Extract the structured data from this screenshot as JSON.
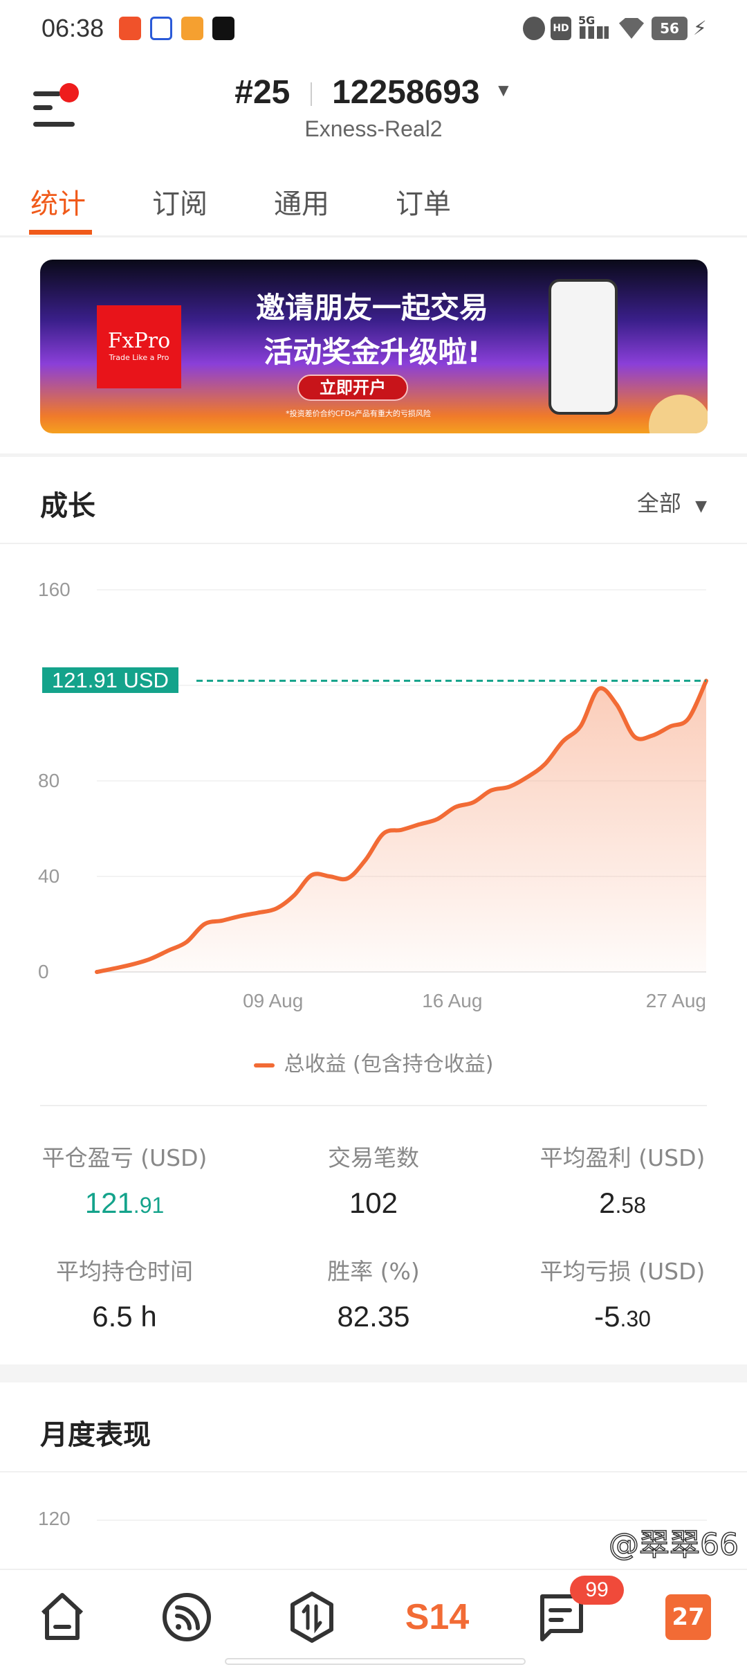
{
  "status_bar": {
    "time": "06:38",
    "battery": "56",
    "network": "5G",
    "hd": "HD"
  },
  "header": {
    "account_number": "#25",
    "account_id": "12258693",
    "server": "Exness-Real2"
  },
  "tabs": [
    {
      "label": "统计",
      "active": true
    },
    {
      "label": "订阅"
    },
    {
      "label": "通用"
    },
    {
      "label": "订单"
    }
  ],
  "banner": {
    "brand": "FxPro",
    "brand_tagline": "Trade Like a Pro",
    "headline1": "邀请朋友一起交易",
    "headline2": "活动奖金升级啦!",
    "cta": "立即开户",
    "disclaimer": "*投资差价合约CFDs产品有重大的亏损风险"
  },
  "growth": {
    "title": "成长",
    "filter": "全部"
  },
  "chart_data": {
    "type": "area",
    "y_ticks": [
      "160",
      "80",
      "40",
      "0"
    ],
    "ylim": [
      0,
      160
    ],
    "x_ticks": [
      {
        "label": "09 Aug",
        "index": 10
      },
      {
        "label": "16 Aug",
        "index": 20
      },
      {
        "label": "27 Aug",
        "index": 34
      }
    ],
    "values": [
      0,
      1.5,
      3.2,
      5.5,
      9.0,
      12.5,
      20.0,
      21.5,
      23.4,
      24.8,
      26.5,
      32,
      40.6,
      40.0,
      39.2,
      47,
      58,
      59.5,
      61.8,
      64,
      69,
      71,
      76,
      77.5,
      81.5,
      87,
      96.5,
      103,
      118.5,
      112,
      98.5,
      99,
      102.8,
      106,
      121.91
    ],
    "current_label": "121.91 USD",
    "current_value": 121.91,
    "legend": "总收益 (包含持仓收益)",
    "legend_position": "bottom",
    "grid": true,
    "line_color": "#f26b35",
    "marker_color": "#14a38b"
  },
  "stats": [
    {
      "label": "平仓盈亏 (USD)",
      "int": "121",
      "dec": ".91",
      "color": "#14a38b"
    },
    {
      "label": "交易笔数",
      "int": "102",
      "dec": ""
    },
    {
      "label": "平均盈利 (USD)",
      "int": "2",
      "dec": ".58"
    },
    {
      "label": "平均持仓时间",
      "int": "6.5 h",
      "dec": ""
    },
    {
      "label": "胜率 (%)",
      "int": "82.35",
      "dec": ""
    },
    {
      "label": "平均亏损 (USD)",
      "int": "-5",
      "dec": ".30"
    }
  ],
  "monthly": {
    "title": "月度表现",
    "y_top": "120"
  },
  "bottom_nav": {
    "items": [
      "home",
      "feed",
      "trade",
      "S14",
      "messages",
      "calendar"
    ],
    "s14_label": "S14",
    "messages_badge": "99",
    "calendar_label": "27"
  },
  "watermark": "@翠翠66",
  "colors": {
    "accent": "#f05a1a",
    "positive": "#14a38b",
    "badge": "#f04a3a"
  }
}
